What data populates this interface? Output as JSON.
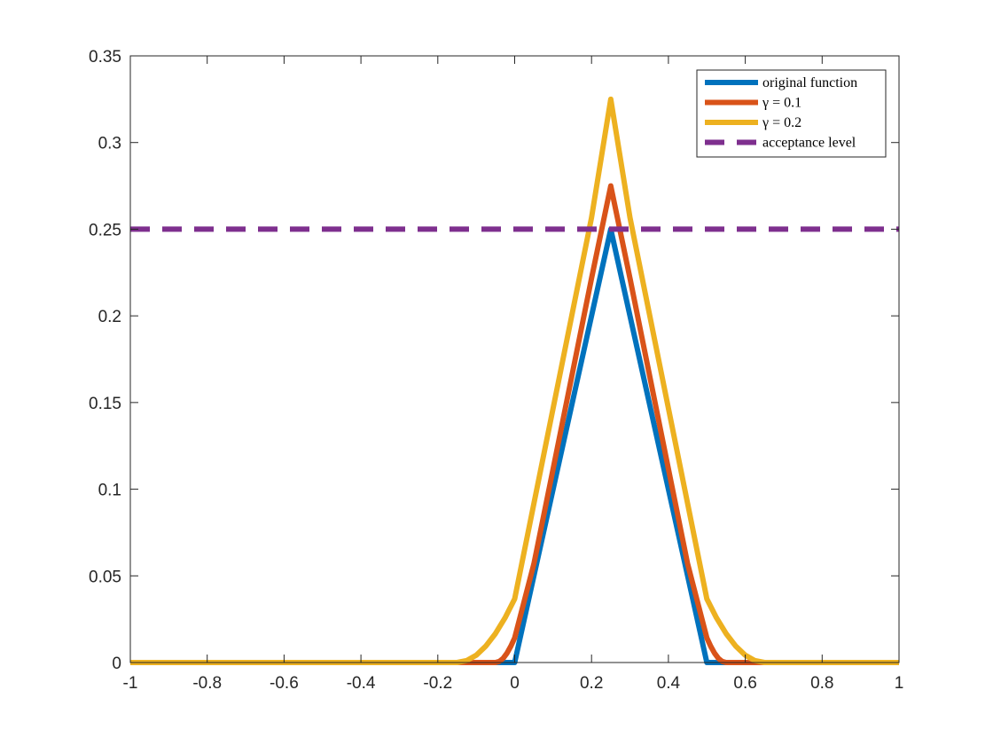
{
  "chart_data": {
    "type": "line",
    "xlim": [
      -1,
      1
    ],
    "ylim": [
      0,
      0.35
    ],
    "xticks": [
      "-1",
      "-0.8",
      "-0.6",
      "-0.4",
      "-0.2",
      "0",
      "0.2",
      "0.4",
      "0.6",
      "0.8",
      "1"
    ],
    "yticks": [
      "0",
      "0.05",
      "0.1",
      "0.15",
      "0.2",
      "0.25",
      "0.3",
      "0.35"
    ],
    "grid": false,
    "legend_position": "top-right",
    "series": [
      {
        "name": "original function",
        "color": "#0072BD",
        "style": "solid",
        "x": [
          -1,
          0,
          0.25,
          0.5,
          1
        ],
        "y": [
          0,
          0,
          0.25,
          0,
          0
        ]
      },
      {
        "name": "γ = 0.1",
        "color": "#D95319",
        "style": "solid",
        "x": [
          -1,
          -0.05,
          -0.04,
          -0.03,
          -0.02,
          -0.01,
          0.0,
          0.05,
          0.1,
          0.15,
          0.2,
          0.25,
          0.3,
          0.35,
          0.4,
          0.45,
          0.5,
          0.51,
          0.52,
          0.53,
          0.54,
          0.55,
          1
        ],
        "y": [
          0,
          0,
          0.0006,
          0.0024,
          0.0054,
          0.0094,
          0.0142,
          0.0569,
          0.1117,
          0.1667,
          0.2217,
          0.275,
          0.2217,
          0.1667,
          0.1117,
          0.0569,
          0.0142,
          0.0094,
          0.0054,
          0.0024,
          0.0006,
          0,
          0
        ]
      },
      {
        "name": "γ = 0.2",
        "color": "#EDB120",
        "style": "solid",
        "x": [
          -1,
          -0.15,
          -0.125,
          -0.1,
          -0.075,
          -0.05,
          -0.025,
          0.0,
          0.05,
          0.1,
          0.15,
          0.2,
          0.25,
          0.3,
          0.35,
          0.4,
          0.45,
          0.5,
          0.525,
          0.55,
          0.575,
          0.6,
          0.625,
          0.65,
          1
        ],
        "y": [
          0,
          0,
          0.0011,
          0.0042,
          0.0095,
          0.0167,
          0.0258,
          0.0367,
          0.0917,
          0.1467,
          0.2017,
          0.2567,
          0.325,
          0.2567,
          0.2017,
          0.1467,
          0.0917,
          0.0367,
          0.0258,
          0.0167,
          0.0095,
          0.0042,
          0.0011,
          0,
          0
        ]
      },
      {
        "name": "acceptance level",
        "color": "#7E2F8E",
        "style": "dashed",
        "x": [
          -1,
          1
        ],
        "y": [
          0.25,
          0.25
        ]
      }
    ]
  }
}
